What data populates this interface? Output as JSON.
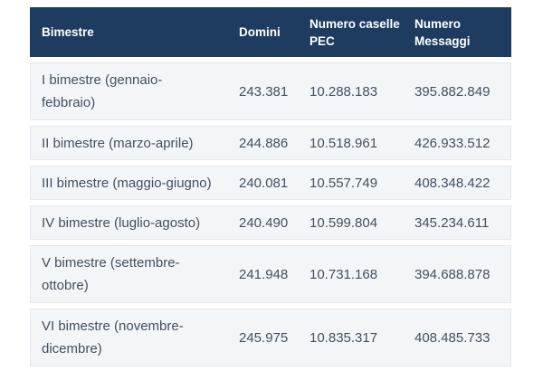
{
  "chart_data": {
    "type": "table",
    "title": "",
    "columns": [
      "Bimestre",
      "Domini",
      "Numero caselle PEC",
      "Numero Messaggi"
    ],
    "rows": [
      {
        "bimestre": "I bimestre (gennaio-febbraio)",
        "domini": 243381,
        "numero_caselle_pec": 10288183,
        "numero_messaggi": 395882849
      },
      {
        "bimestre": "II bimestre (marzo-aprile)",
        "domini": 244886,
        "numero_caselle_pec": 10518961,
        "numero_messaggi": 426933512
      },
      {
        "bimestre": "III bimestre (maggio-giugno)",
        "domini": 240081,
        "numero_caselle_pec": 10557749,
        "numero_messaggi": 408348422
      },
      {
        "bimestre": "IV bimestre (luglio-agosto)",
        "domini": 240490,
        "numero_caselle_pec": 10599804,
        "numero_messaggi": 345234611
      },
      {
        "bimestre": "V bimestre (settembre-ottobre)",
        "domini": 241948,
        "numero_caselle_pec": 10731168,
        "numero_messaggi": 394688878
      },
      {
        "bimestre": "VI bimestre (novembre-dicembre)",
        "domini": 245975,
        "numero_caselle_pec": 10835317,
        "numero_messaggi": 408485733
      }
    ]
  },
  "colors": {
    "page_bg": "#ffffff",
    "header_bg": "#1d3c60",
    "header_text": "#ffffff",
    "row_bg": "#f3f6f8",
    "row_border": "#e3e9ee",
    "row_text": "#42505f"
  },
  "table": {
    "header": {
      "bimestre_lines": [
        "Bimestre"
      ],
      "domini_lines": [
        "Domini"
      ],
      "caselle_pec_lines": [
        "Numero caselle",
        "PEC"
      ],
      "messaggi_lines": [
        "Numero",
        "Messaggi"
      ]
    },
    "rows": [
      {
        "bimestre_lines": [
          "I bimestre (gennaio-",
          "febbraio)"
        ],
        "domini": "243.381",
        "caselle_pec": "10.288.183",
        "messaggi": "395.882.849"
      },
      {
        "bimestre_lines": [
          "II bimestre (marzo-aprile)"
        ],
        "domini": "244.886",
        "caselle_pec": "10.518.961",
        "messaggi": "426.933.512"
      },
      {
        "bimestre_lines": [
          "III bimestre (maggio-giugno)"
        ],
        "domini": "240.081",
        "caselle_pec": "10.557.749",
        "messaggi": "408.348.422"
      },
      {
        "bimestre_lines": [
          "IV bimestre (luglio-agosto)"
        ],
        "domini": "240.490",
        "caselle_pec": "10.599.804",
        "messaggi": "345.234.611"
      },
      {
        "bimestre_lines": [
          "V bimestre (settembre-",
          "ottobre)"
        ],
        "domini": "241.948",
        "caselle_pec": "10.731.168",
        "messaggi": "394.688.878"
      },
      {
        "bimestre_lines": [
          "VI bimestre (novembre-",
          "dicembre)"
        ],
        "domini": "245.975",
        "caselle_pec": "10.835.317",
        "messaggi": "408.485.733"
      }
    ]
  }
}
